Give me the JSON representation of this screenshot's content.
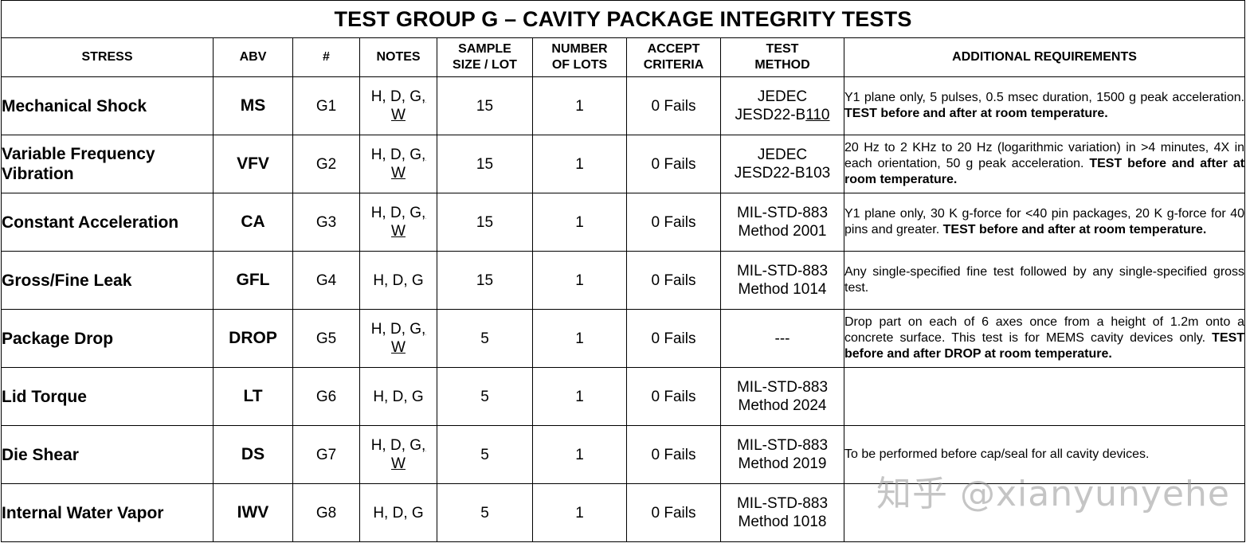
{
  "title": "TEST GROUP G – CAVITY PACKAGE INTEGRITY TESTS",
  "headers": {
    "stress": "STRESS",
    "abv": "ABV",
    "num": "#",
    "notes": "NOTES",
    "sample_1": "SAMPLE",
    "sample_2": "SIZE / LOT",
    "lots_1": "NUMBER",
    "lots_2": "OF LOTS",
    "accept_1": "ACCEPT",
    "accept_2": "CRITERIA",
    "method_1": "TEST",
    "method_2": "METHOD",
    "additional": "ADDITIONAL REQUIREMENTS"
  },
  "rows": [
    {
      "stress": "Mechanical Shock",
      "abv": "MS",
      "num": "G1",
      "notes_1": "H, D, G",
      "notes_sep": ",",
      "notes_2": "W",
      "sample": "15",
      "lots": "1",
      "accept": "0 Fails",
      "method_1": "JEDEC",
      "method_2a": "JESD22-B",
      "method_2b": "110",
      "req_plain": "Y1 plane only, 5 pulses, 0.5 msec duration, 1500 g peak acceleration. ",
      "req_bold": "TEST before and after at room temperature.",
      "req_tail": ""
    },
    {
      "stress": "Variable Frequency Vibration",
      "abv": "VFV",
      "num": "G2",
      "notes_1": "H, D, G",
      "notes_sep": ",",
      "notes_2": "W",
      "sample": "15",
      "lots": "1",
      "accept": "0 Fails",
      "method_1": "JEDEC",
      "method_2": "JESD22-B103",
      "req_plain": "20 Hz to 2 KHz to 20 Hz (logarithmic variation) in >4 minutes, 4X in each orientation, 50 g peak acceleration. ",
      "req_bold": "TEST before and after at room temperature.",
      "req_tail": ""
    },
    {
      "stress": "Constant Acceleration",
      "abv": "CA",
      "num": "G3",
      "notes_1": "H, D, G",
      "notes_sep": ",",
      "notes_2": "W",
      "sample": "15",
      "lots": "1",
      "accept": "0 Fails",
      "method_1": "MIL-STD-883",
      "method_2": "Method 2001",
      "req_plain": "Y1 plane only, 30 K g-force for <40 pin packages, 20 K g-force for 40 pins and greater. ",
      "req_bold": "TEST before and after at room temperature.",
      "req_tail": ""
    },
    {
      "stress": "Gross/Fine Leak",
      "abv": "GFL",
      "num": "G4",
      "notes": "H, D, G",
      "sample": "15",
      "lots": "1",
      "accept": "0 Fails",
      "method_1": "MIL-STD-883",
      "method_2": "Method 1014",
      "req_plain": "Any single-specified fine test followed by any single-specified gross test.",
      "req_bold": "",
      "req_tail": ""
    },
    {
      "stress": "Package Drop",
      "abv": "DROP",
      "num": "G5",
      "notes_1": "H, D, G",
      "notes_sep": ",",
      "notes_2": "W",
      "sample": "5",
      "lots": "1",
      "accept": "0 Fails",
      "method": "---",
      "req_plain": "Drop part on each of 6 axes once from a height of 1.2m onto a concrete surface. This test is for MEMS cavity devices only. ",
      "req_bold": "TEST before and after DROP at room temperature.",
      "req_tail": ""
    },
    {
      "stress": "Lid Torque",
      "abv": "LT",
      "num": "G6",
      "notes": "H, D, G",
      "sample": "5",
      "lots": "1",
      "accept": "0 Fails",
      "method_1": "MIL-STD-883",
      "method_2": "Method 2024",
      "req_plain": "",
      "req_bold": "",
      "req_tail": ""
    },
    {
      "stress": "Die Shear",
      "abv": "DS",
      "num": "G7",
      "notes_1": "H, D, G",
      "notes_sep": ",",
      "notes_2": "W",
      "sample": "5",
      "lots": "1",
      "accept": "0 Fails",
      "method_1": "MIL-STD-883",
      "method_2": "Method 2019",
      "req_plain": "To be performed before cap/seal for all cavity devices.",
      "req_bold": "",
      "req_tail": ""
    },
    {
      "stress": "Internal Water Vapor",
      "abv": "IWV",
      "num": "G8",
      "notes": "H, D, G",
      "sample": "5",
      "lots": "1",
      "accept": "0 Fails",
      "method_1": "MIL-STD-883",
      "method_2": "Method 1018",
      "req_plain": "",
      "req_bold": "",
      "req_tail": ""
    }
  ],
  "watermark": "知乎 @xianyunyehe"
}
